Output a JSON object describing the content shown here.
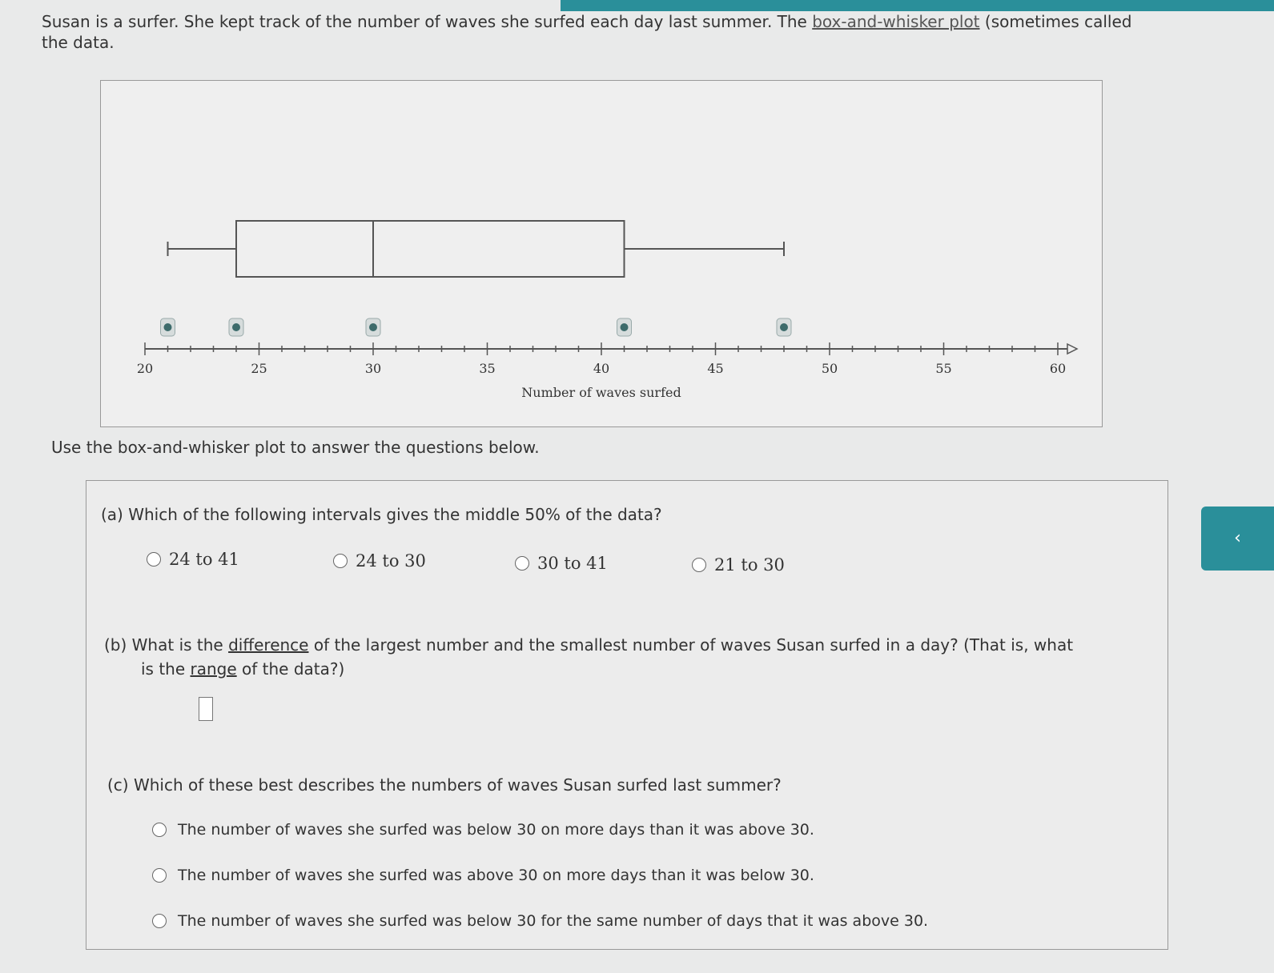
{
  "intro": {
    "part1": "Susan is a surfer. She kept track of the number of waves she surfed each day last summer. The ",
    "link": "box-and-whisker plot",
    "part2": " (sometimes called",
    "line2": "the data."
  },
  "chart_data": {
    "type": "boxplot",
    "xlabel": "Number of waves surfed",
    "xlim": [
      20,
      60
    ],
    "major_ticks": [
      20,
      25,
      30,
      35,
      40,
      45,
      50,
      55,
      60
    ],
    "minor_tick_step": 1,
    "min": 21,
    "q1": 24,
    "median": 30,
    "q3": 41,
    "max": 48,
    "handles": [
      21,
      24,
      30,
      41,
      48
    ]
  },
  "use_text": "Use the box-and-whisker plot to answer the questions below.",
  "qa": {
    "label": "(a) Which of the following intervals gives the middle 50% of the data?",
    "options": [
      "24 to 41",
      "24 to 30",
      "30 to 41",
      "21 to 30"
    ]
  },
  "qb": {
    "pre": "(b) What is the ",
    "link1": "difference",
    "mid": " of the largest number and the smallest number of waves Susan surfed in a day? (That is, what",
    "line2pre": "is the ",
    "link2": "range",
    "line2post": " of the data?)",
    "answer": ""
  },
  "qc": {
    "label": "(c) Which of these best describes the numbers of waves Susan surfed last summer?",
    "options": [
      "The number of waves she surfed was below 30 on more days than it was above 30.",
      "The number of waves she surfed was above 30 on more days than it was below 30.",
      "The number of waves she surfed was below 30 for the same number of days that it was above 30."
    ]
  },
  "side_button": "‹",
  "colors": {
    "accent": "#2a8f9a",
    "handle": "#3d6b6b"
  }
}
